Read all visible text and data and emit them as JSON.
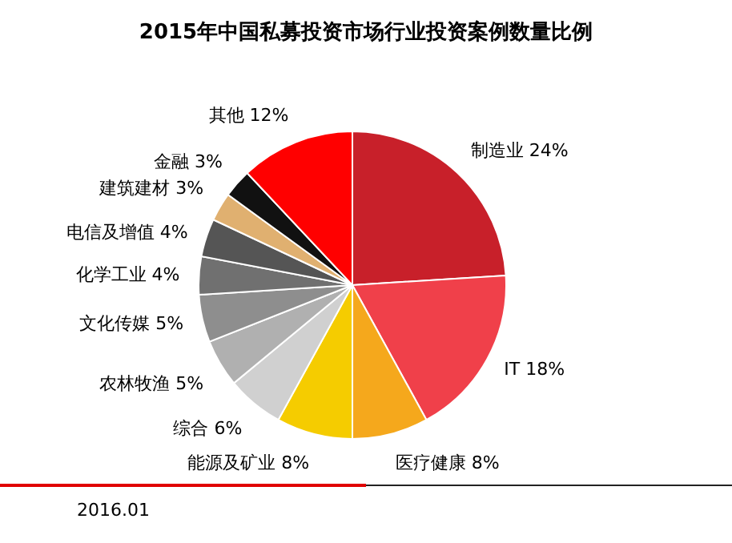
{
  "chart_data": {
    "type": "pie",
    "title": "2015年中国私募投资市场行业投资案例数量比例",
    "categories": [
      "制造业",
      "IT",
      "医疗健康",
      "能源及矿业",
      "综合",
      "农林牧渔",
      "文化传媒",
      "化学工业",
      "电信及增值",
      "建筑建材",
      "金融",
      "其他"
    ],
    "values": [
      24,
      18,
      8,
      8,
      6,
      5,
      5,
      4,
      4,
      3,
      3,
      12
    ],
    "value_labels": [
      "24%",
      "18%",
      "8%",
      "8%",
      "6%",
      "5%",
      "5%",
      "4%",
      "4%",
      "3%",
      "3%",
      "12%"
    ],
    "colors": [
      "#c8202a",
      "#f0404a",
      "#f5a81c",
      "#f5cc00",
      "#d0d0d0",
      "#b0b0b0",
      "#8e8e8e",
      "#707070",
      "#555555",
      "#e0b070",
      "#111111",
      "#ff0000"
    ],
    "annotations": [
      "2016.01"
    ]
  }
}
